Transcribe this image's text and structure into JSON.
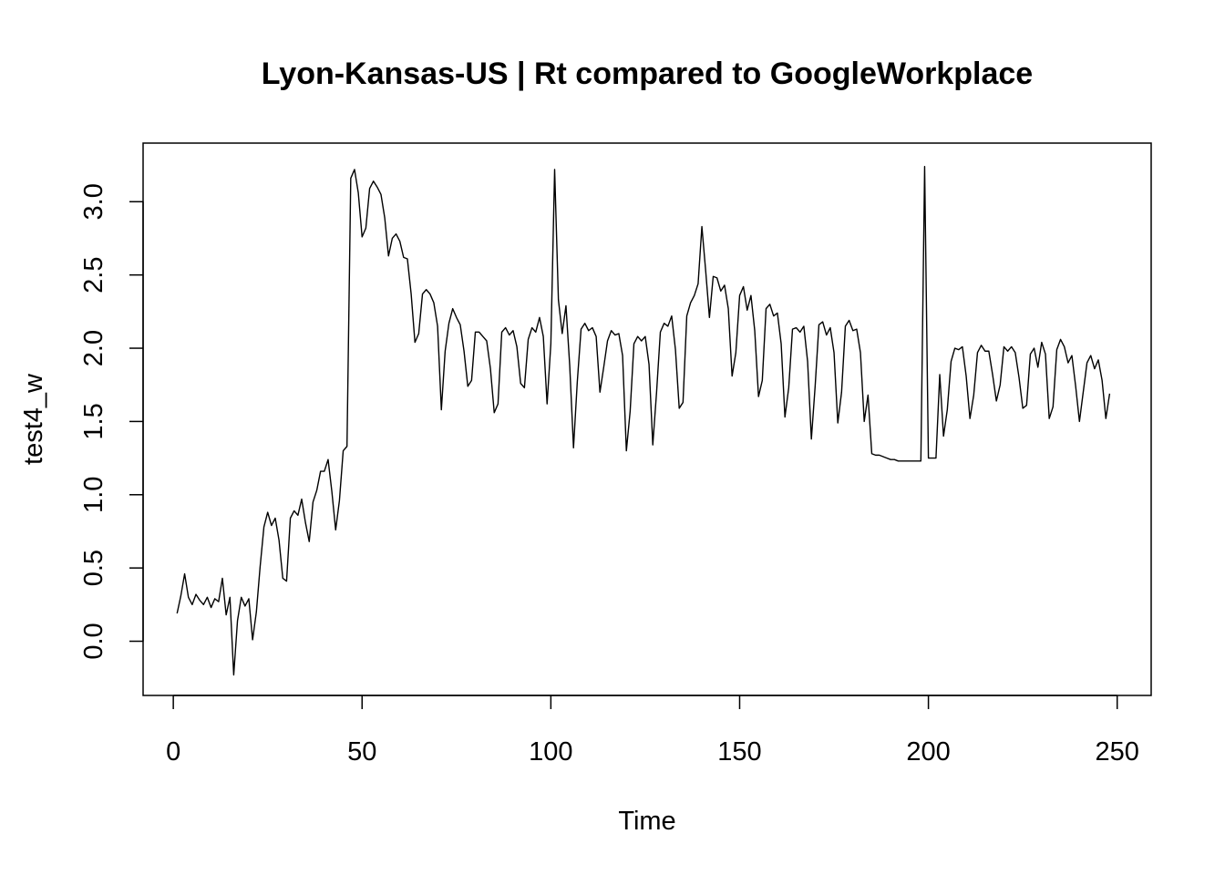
{
  "chart_data": {
    "type": "line",
    "title": "Lyon-Kansas-US | Rt compared to GoogleWorkplace",
    "xlabel": "Time",
    "ylabel": "test4_w",
    "xlim": [
      -8,
      259
    ],
    "ylim": [
      -0.37,
      3.4
    ],
    "x_ticks": [
      0,
      50,
      100,
      150,
      200,
      250
    ],
    "y_ticks": [
      0.0,
      0.5,
      1.0,
      1.5,
      2.0,
      2.5,
      3.0
    ],
    "y_tick_labels": [
      "0.0",
      "0.5",
      "1.0",
      "1.5",
      "2.0",
      "2.5",
      "3.0"
    ],
    "grid": false,
    "series": [
      {
        "x_start": 1,
        "x_step": 1,
        "values": [
          0.19,
          0.31,
          0.46,
          0.3,
          0.25,
          0.32,
          0.28,
          0.25,
          0.3,
          0.23,
          0.29,
          0.27,
          0.43,
          0.18,
          0.3,
          -0.23,
          0.14,
          0.3,
          0.24,
          0.29,
          0.01,
          0.2,
          0.51,
          0.78,
          0.88,
          0.79,
          0.84,
          0.69,
          0.43,
          0.41,
          0.84,
          0.89,
          0.86,
          0.97,
          0.81,
          0.68,
          0.95,
          1.03,
          1.16,
          1.16,
          1.24,
          1.02,
          0.76,
          0.96,
          1.3,
          1.33,
          3.16,
          3.22,
          3.06,
          2.76,
          2.82,
          3.09,
          3.14,
          3.1,
          3.05,
          2.89,
          2.63,
          2.75,
          2.78,
          2.73,
          2.62,
          2.61,
          2.37,
          2.04,
          2.1,
          2.37,
          2.4,
          2.37,
          2.31,
          2.15,
          1.58,
          1.98,
          2.17,
          2.27,
          2.21,
          2.16,
          1.98,
          1.74,
          1.78,
          2.11,
          2.11,
          2.08,
          2.05,
          1.86,
          1.56,
          1.62,
          2.11,
          2.14,
          2.09,
          2.12,
          2.01,
          1.76,
          1.73,
          2.06,
          2.14,
          2.11,
          2.21,
          2.08,
          1.62,
          2.03,
          3.22,
          2.33,
          2.1,
          2.29,
          1.88,
          1.32,
          1.77,
          2.13,
          2.17,
          2.12,
          2.14,
          2.08,
          1.7,
          1.87,
          2.05,
          2.12,
          2.09,
          2.1,
          1.95,
          1.3,
          1.57,
          2.03,
          2.08,
          2.05,
          2.08,
          1.89,
          1.34,
          1.7,
          2.11,
          2.17,
          2.15,
          2.22,
          1.99,
          1.59,
          1.63,
          2.22,
          2.31,
          2.36,
          2.44,
          2.83,
          2.53,
          2.21,
          2.49,
          2.48,
          2.39,
          2.43,
          2.27,
          1.81,
          1.97,
          2.36,
          2.42,
          2.26,
          2.36,
          2.12,
          1.67,
          1.78,
          2.27,
          2.3,
          2.22,
          2.24,
          2.03,
          1.53,
          1.73,
          2.13,
          2.14,
          2.11,
          2.15,
          1.91,
          1.38,
          1.74,
          2.16,
          2.18,
          2.09,
          2.14,
          1.97,
          1.49,
          1.7,
          2.15,
          2.19,
          2.12,
          2.13,
          1.97,
          1.5,
          1.68,
          1.28,
          1.27,
          1.27,
          1.26,
          1.25,
          1.24,
          1.24,
          1.23,
          1.23,
          1.23,
          1.23,
          1.23,
          1.23,
          1.23,
          3.24,
          1.25,
          1.25,
          1.25,
          1.82,
          1.4,
          1.58,
          1.91,
          2.0,
          1.99,
          2.01,
          1.81,
          1.52,
          1.68,
          1.97,
          2.02,
          1.98,
          1.98,
          1.82,
          1.64,
          1.75,
          2.01,
          1.98,
          2.01,
          1.97,
          1.8,
          1.59,
          1.61,
          1.96,
          2.0,
          1.87,
          2.04,
          1.96,
          1.52,
          1.6,
          1.99,
          2.06,
          2.01,
          1.9,
          1.95,
          1.74,
          1.5,
          1.7,
          1.9,
          1.95,
          1.86,
          1.92,
          1.78,
          1.52,
          1.69
        ]
      }
    ]
  }
}
